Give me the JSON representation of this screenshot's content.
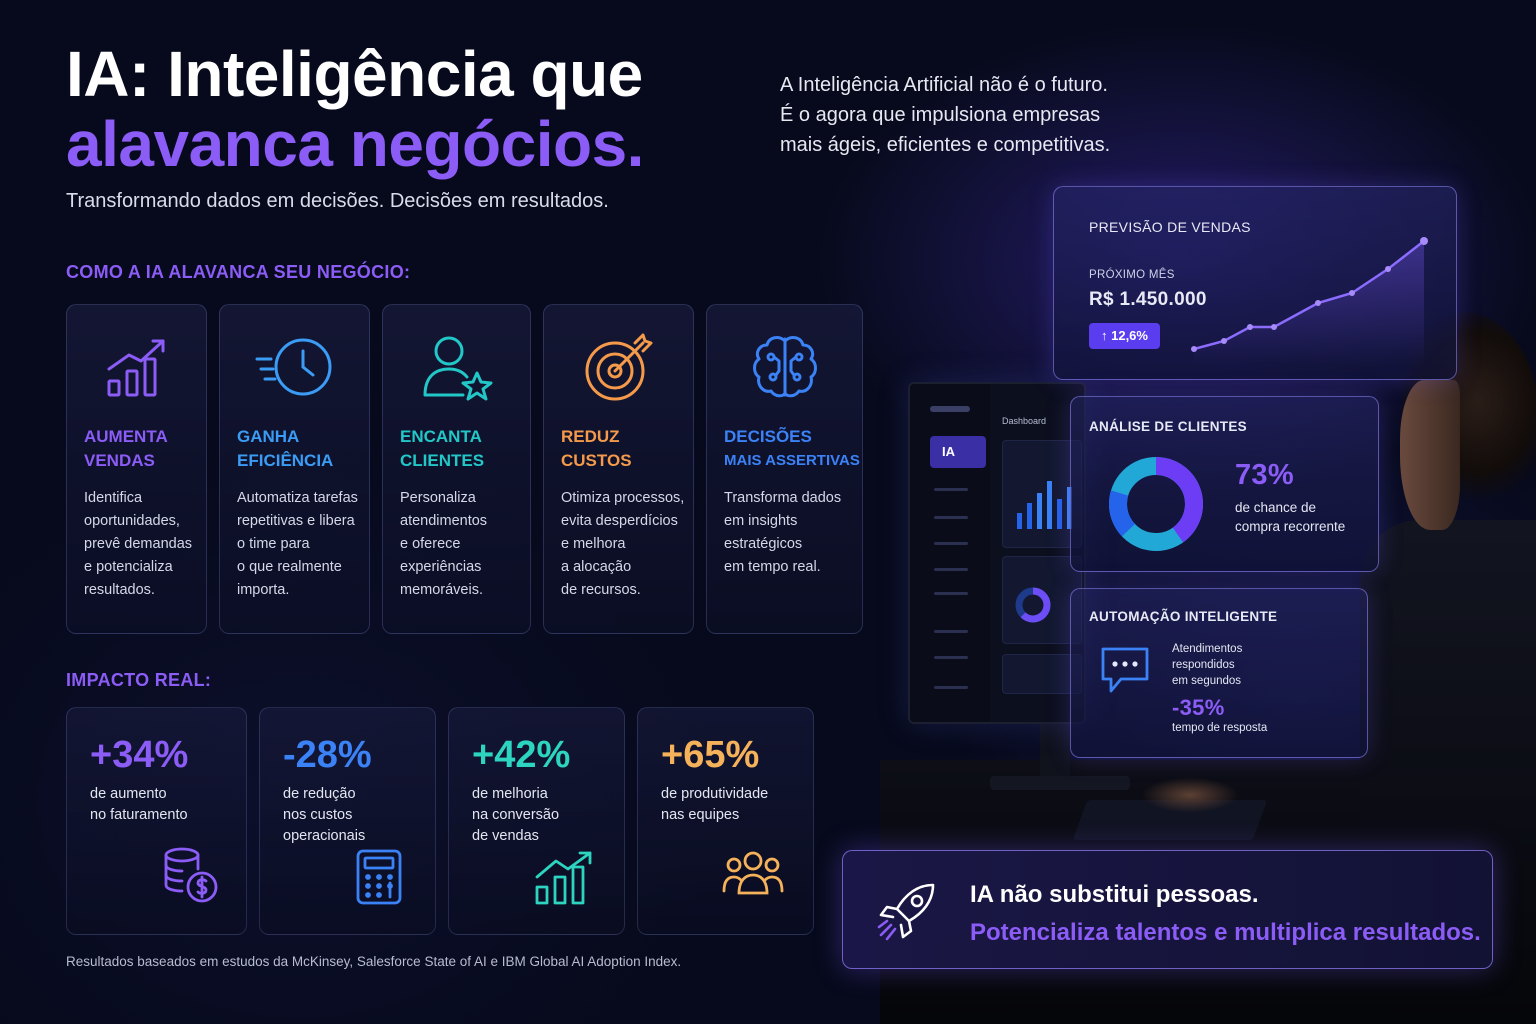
{
  "header": {
    "title_line1": "IA: Inteligência que",
    "title_line2": "alavanca negócios.",
    "subtitle": "Transformando dados em decisões. Decisões em resultados.",
    "intro": [
      "A Inteligência Artificial não é o futuro.",
      "É o agora que impulsiona empresas",
      "mais ágeis, eficientes e competitivas."
    ]
  },
  "benefits": {
    "section_label": "COMO A IA ALAVANCA SEU NEGÓCIO:",
    "cards": [
      {
        "icon": "growth-chart-icon",
        "title": [
          "AUMENTA",
          "VENDAS"
        ],
        "color": "#8b5cf6",
        "desc": [
          "Identifica",
          "oportunidades,",
          "prevê demandas",
          "e potencializa",
          "resultados."
        ]
      },
      {
        "icon": "fast-clock-icon",
        "title": [
          "GANHA",
          "EFICIÊNCIA"
        ],
        "color": "#3b9cf6",
        "desc": [
          "Automatiza tarefas",
          "repetitivas e libera",
          "o time para",
          "o que realmente",
          "importa."
        ]
      },
      {
        "icon": "user-star-icon",
        "title": [
          "ENCANTA",
          "CLIENTES"
        ],
        "color": "#22c7c7",
        "desc": [
          "Personaliza",
          "atendimentos",
          "e oferece",
          "experiências",
          "memoráveis."
        ]
      },
      {
        "icon": "target-icon",
        "title": [
          "REDUZ",
          "CUSTOS"
        ],
        "color": "#f59a4a",
        "desc": [
          "Otimiza processos,",
          "evita desperdícios",
          "e melhora",
          "a alocação",
          "de recursos."
        ]
      },
      {
        "icon": "brain-icon",
        "title": [
          "DECISÕES",
          "MAIS ASSERTIVAS"
        ],
        "color": "#3b82f6",
        "desc": [
          "Transforma dados",
          "em insights",
          "estratégicos",
          "em tempo real."
        ]
      }
    ]
  },
  "impact": {
    "section_label": "IMPACTO REAL:",
    "stats": [
      {
        "value": "+34%",
        "color": "#8b5cf6",
        "desc": [
          "de aumento",
          "no faturamento"
        ],
        "icon": "coins-dollar-icon"
      },
      {
        "value": "-28%",
        "color": "#3b82f6",
        "desc": [
          "de redução",
          "nos custos",
          "operacionais"
        ],
        "icon": "calculator-icon"
      },
      {
        "value": "+42%",
        "color": "#2dd4bf",
        "desc": [
          "de melhoria",
          "na conversão",
          "de vendas"
        ],
        "icon": "bar-growth-icon"
      },
      {
        "value": "+65%",
        "color": "#f5b25a",
        "desc": [
          "de produtividade",
          "nas equipes"
        ],
        "icon": "team-icon"
      }
    ],
    "footnote": "Resultados baseados em estudos da McKinsey, Salesforce State of AI e IBM Global AI Adoption Index."
  },
  "monitor": {
    "sidebar_active": "IA",
    "title": "Dashboard"
  },
  "sales_panel": {
    "title": "PREVISÃO DE VENDAS",
    "label": "PRÓXIMO MÊS",
    "value": "R$ 1.450.000",
    "badge": "↑ 12,6%"
  },
  "clients_panel": {
    "title": "ANÁLISE DE CLIENTES",
    "value": "73%",
    "desc": [
      "de chance de",
      "compra recorrente"
    ],
    "percent": 0.73
  },
  "automation_panel": {
    "title": "AUTOMAÇÃO INTELIGENTE",
    "desc": [
      "Atendimentos",
      "respondidos",
      "em segundos"
    ],
    "value": "-35%",
    "value_desc": "tempo de resposta"
  },
  "cta": {
    "line1": "IA não substitui pessoas.",
    "line2": "Potencializa talentos e multiplica resultados."
  }
}
